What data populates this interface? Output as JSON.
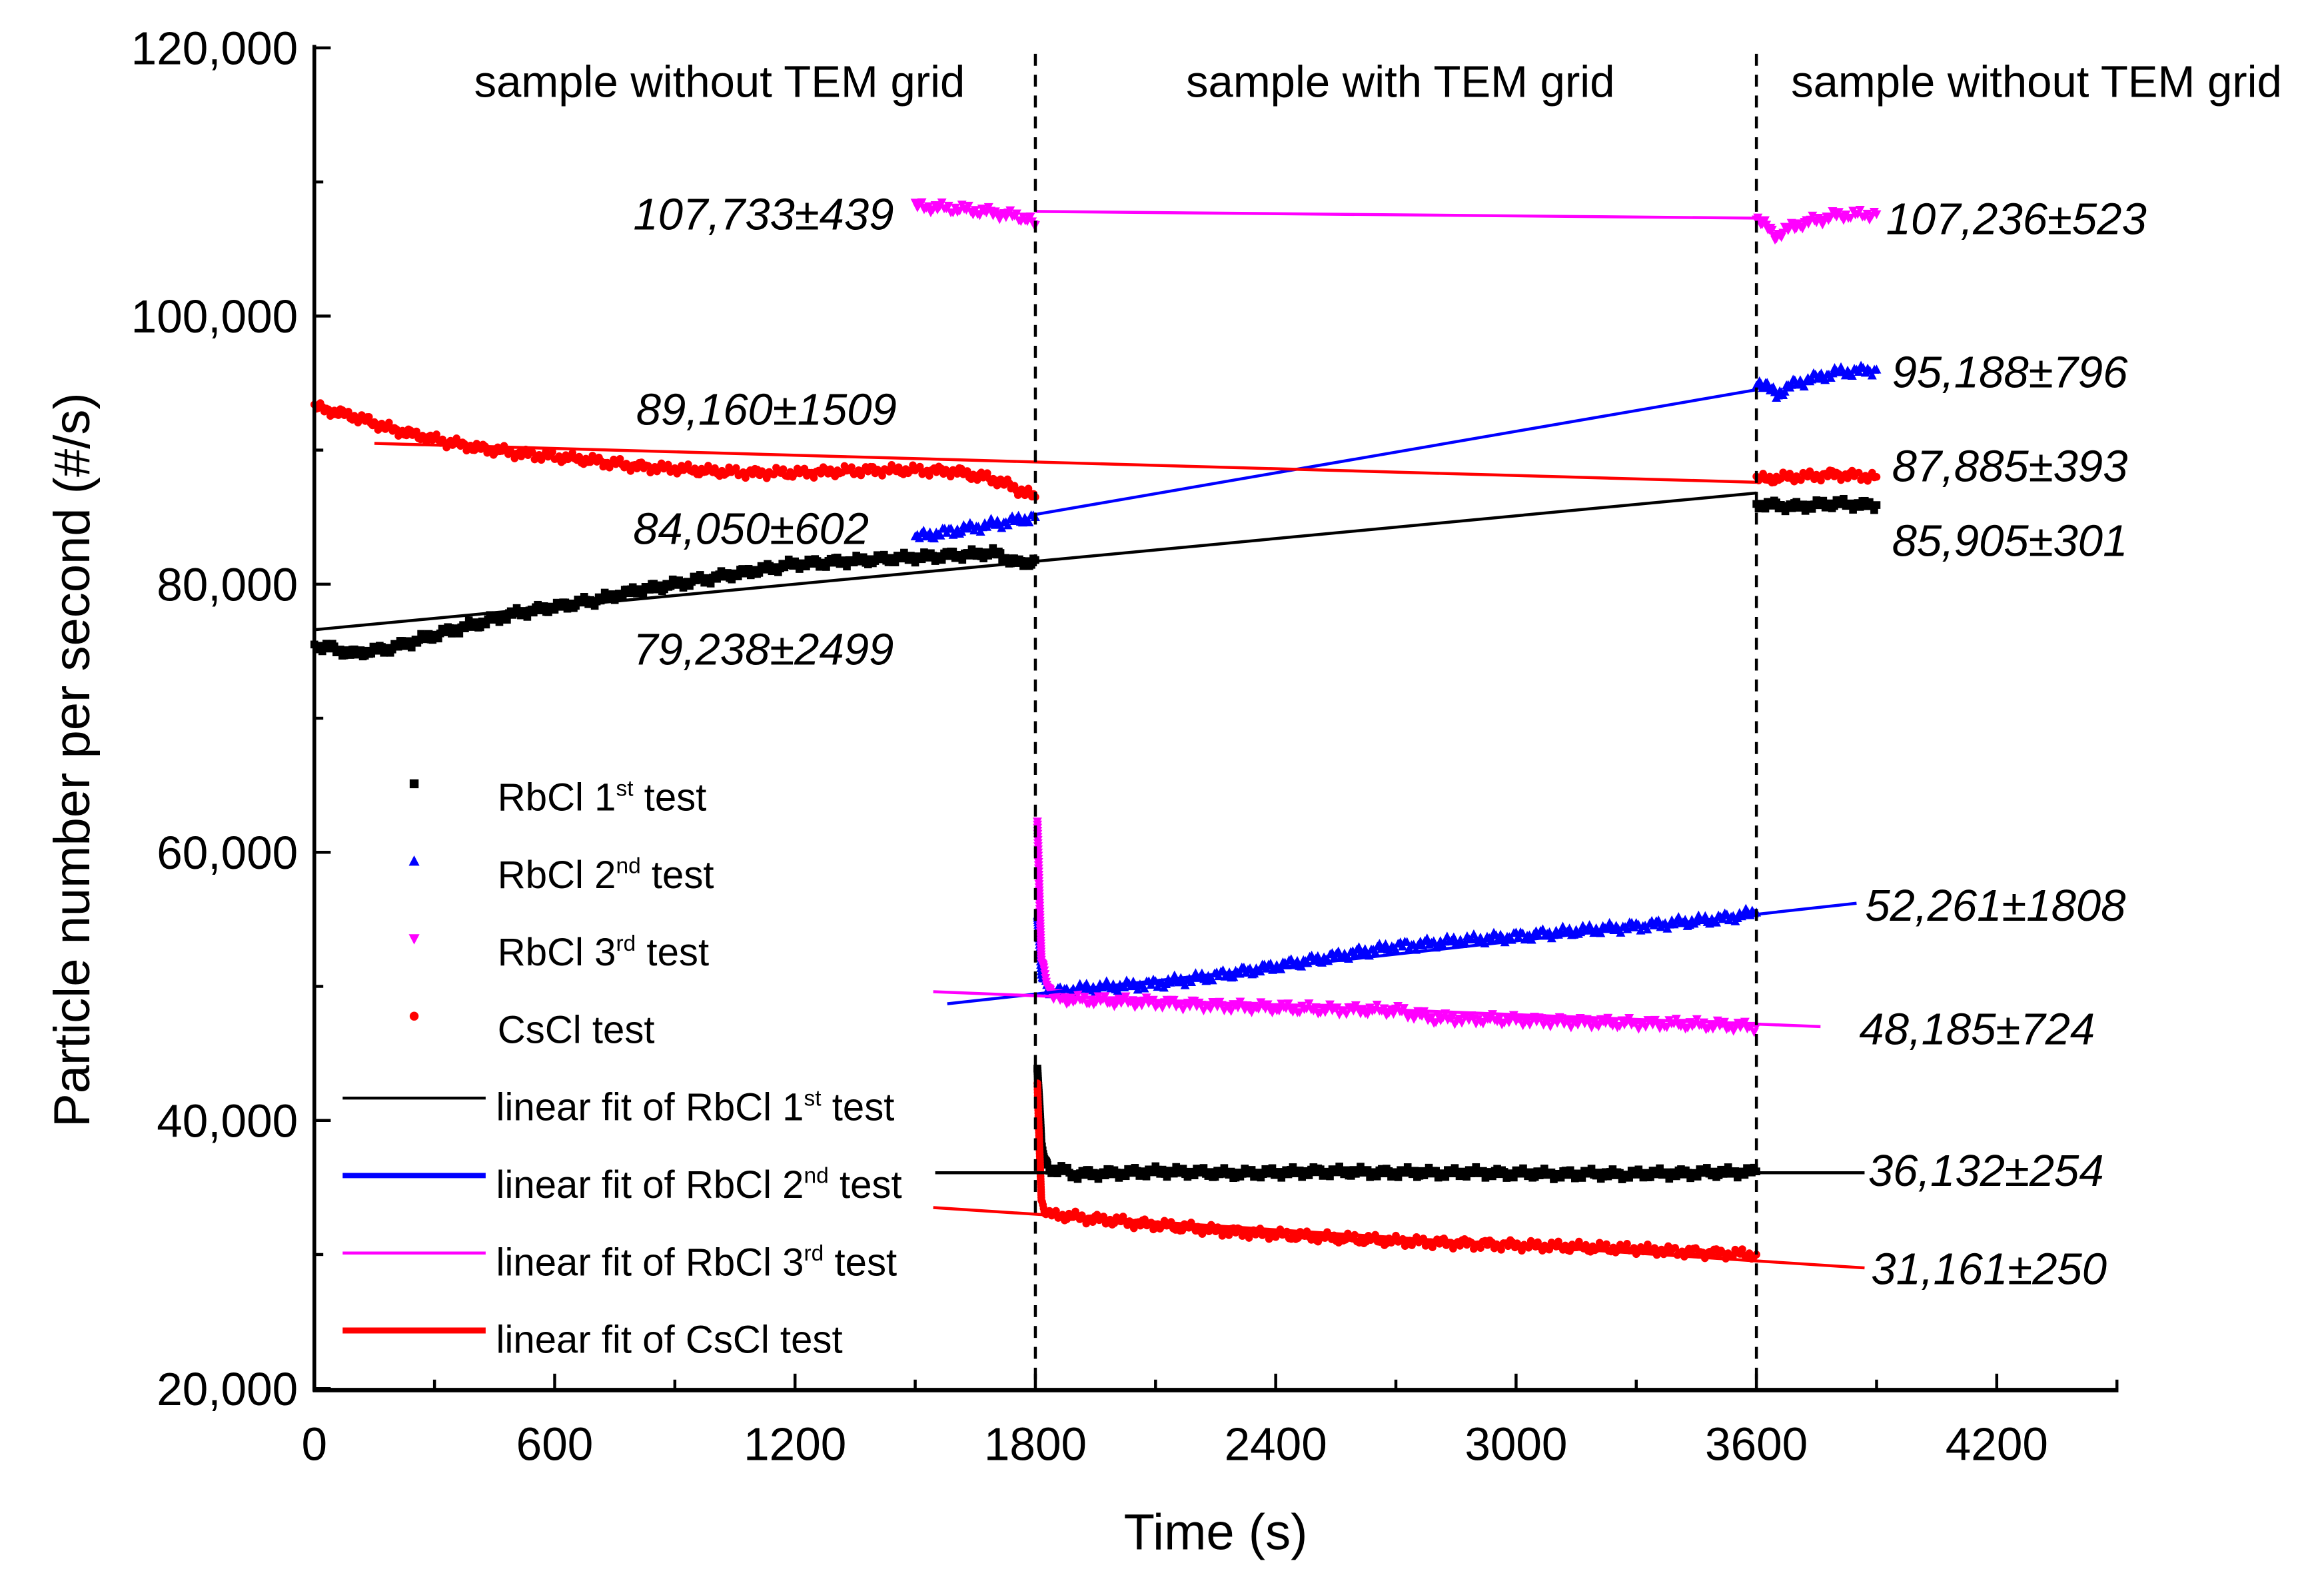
{
  "chart_data": {
    "type": "scatter",
    "title": "",
    "xlabel": "Time (s)",
    "ylabel": "Particle number per second (#/s)",
    "xlim": [
      0,
      4500
    ],
    "ylim": [
      20000,
      120000
    ],
    "xticks": [
      "0",
      "600",
      "1200",
      "1800",
      "2400",
      "3000",
      "3600",
      "4200"
    ],
    "xtick_values": [
      0,
      600,
      1200,
      1800,
      2400,
      3000,
      3600,
      4200
    ],
    "yticks": [
      "20,000",
      "40,000",
      "60,000",
      "80,000",
      "100,000",
      "120,000"
    ],
    "ytick_values": [
      20000,
      40000,
      60000,
      80000,
      100000,
      120000
    ],
    "grid": false,
    "legend_placement": "lower-left",
    "regions": [
      {
        "label": "sample without TEM grid",
        "range": [
          0,
          1800
        ]
      },
      {
        "label": "sample with TEM grid",
        "range": [
          1800,
          3600
        ]
      },
      {
        "label": "sample without TEM grid",
        "range": [
          3600,
          4500
        ]
      }
    ],
    "dividers": [
      1800,
      3600
    ],
    "series": [
      {
        "name": "RbCl 1st test",
        "legend": {
          "base": "RbCl 1",
          "sup": "st",
          "tail": " test"
        },
        "color": "#000000",
        "marker": "square",
        "segments": [
          [
            [
              0,
              75500
            ],
            [
              100,
              74800
            ],
            [
              200,
              75300
            ],
            [
              300,
              76200
            ],
            [
              400,
              77000
            ],
            [
              500,
              77800
            ],
            [
              600,
              78300
            ],
            [
              700,
              78800
            ],
            [
              800,
              79500
            ],
            [
              900,
              80000
            ],
            [
              1000,
              80500
            ],
            [
              1100,
              81000
            ],
            [
              1200,
              81500
            ],
            [
              1300,
              81700
            ],
            [
              1400,
              81800
            ],
            [
              1500,
              82000
            ],
            [
              1600,
              82200
            ],
            [
              1700,
              82300
            ],
            [
              1760,
              81500
            ],
            [
              1800,
              81800
            ]
          ],
          [
            [
              1805,
              44000
            ],
            [
              1815,
              38000
            ],
            [
              1830,
              36500
            ],
            [
              1900,
              36000
            ],
            [
              2100,
              36200
            ],
            [
              2300,
              36000
            ],
            [
              2500,
              36200
            ],
            [
              2700,
              36100
            ],
            [
              2900,
              36100
            ],
            [
              3100,
              36000
            ],
            [
              3300,
              36000
            ],
            [
              3500,
              36100
            ],
            [
              3600,
              36200
            ]
          ],
          [
            [
              3600,
              86000
            ],
            [
              3700,
              85800
            ],
            [
              3800,
              86000
            ],
            [
              3900,
              85900
            ]
          ]
        ]
      },
      {
        "name": "RbCl 2nd test",
        "legend": {
          "base": "RbCl 2",
          "sup": "nd",
          "tail": " test"
        },
        "color": "#0000ff",
        "marker": "triangle-up",
        "segments": [
          [
            [
              1500,
              83500
            ],
            [
              1600,
              84000
            ],
            [
              1700,
              84500
            ],
            [
              1800,
              85000
            ]
          ],
          [
            [
              1805,
              55000
            ],
            [
              1815,
              51000
            ],
            [
              1840,
              49500
            ],
            [
              1900,
              49800
            ],
            [
              2100,
              50200
            ],
            [
              2300,
              51000
            ],
            [
              2500,
              52000
            ],
            [
              2700,
              53000
            ],
            [
              2900,
              53500
            ],
            [
              3100,
              54000
            ],
            [
              3300,
              54500
            ],
            [
              3500,
              55000
            ],
            [
              3600,
              55500
            ]
          ],
          [
            [
              3600,
              95200
            ],
            [
              3650,
              94200
            ],
            [
              3700,
              95000
            ],
            [
              3800,
              95800
            ],
            [
              3900,
              96000
            ]
          ]
        ]
      },
      {
        "name": "RbCl 3rd test",
        "legend": {
          "base": "RbCl 3",
          "sup": "rd",
          "tail": " test"
        },
        "color": "#ff00ff",
        "marker": "triangle-down",
        "segments": [
          [
            [
              1500,
              108200
            ],
            [
              1600,
              108000
            ],
            [
              1700,
              107700
            ],
            [
              1780,
              107300
            ],
            [
              1800,
              106800
            ]
          ],
          [
            [
              1805,
              62000
            ],
            [
              1815,
              52000
            ],
            [
              1840,
              49200
            ],
            [
              1900,
              49000
            ],
            [
              2100,
              48800
            ],
            [
              2300,
              48500
            ],
            [
              2500,
              48300
            ],
            [
              2700,
              48200
            ],
            [
              2800,
              47600
            ],
            [
              3000,
              47500
            ],
            [
              3200,
              47300
            ],
            [
              3400,
              47200
            ],
            [
              3600,
              47000
            ]
          ],
          [
            [
              3600,
              107300
            ],
            [
              3650,
              106000
            ],
            [
              3700,
              106800
            ],
            [
              3800,
              107500
            ],
            [
              3900,
              107600
            ]
          ]
        ]
      },
      {
        "name": "CsCl test",
        "legend": {
          "base": "CsCl test",
          "sup": "",
          "tail": ""
        },
        "color": "#ff0000",
        "marker": "circle",
        "segments": [
          [
            [
              0,
              93200
            ],
            [
              100,
              92500
            ],
            [
              200,
              91500
            ],
            [
              300,
              90800
            ],
            [
              400,
              90200
            ],
            [
              500,
              89800
            ],
            [
              600,
              89500
            ],
            [
              700,
              89200
            ],
            [
              800,
              88800
            ],
            [
              900,
              88600
            ],
            [
              1000,
              88400
            ],
            [
              1100,
              88300
            ],
            [
              1200,
              88300
            ],
            [
              1300,
              88400
            ],
            [
              1400,
              88500
            ],
            [
              1500,
              88500
            ],
            [
              1600,
              88400
            ],
            [
              1700,
              87800
            ],
            [
              1800,
              86500
            ]
          ],
          [
            [
              1805,
              43000
            ],
            [
              1815,
              34000
            ],
            [
              1830,
              33000
            ],
            [
              1900,
              32800
            ],
            [
              2100,
              32200
            ],
            [
              2300,
              31700
            ],
            [
              2500,
              31300
            ],
            [
              2700,
              31000
            ],
            [
              2900,
              30800
            ],
            [
              3100,
              30600
            ],
            [
              3300,
              30400
            ],
            [
              3500,
              30100
            ],
            [
              3600,
              30000
            ]
          ],
          [
            [
              3600,
              87800
            ],
            [
              3700,
              88000
            ],
            [
              3800,
              88200
            ],
            [
              3900,
              88000
            ]
          ]
        ]
      }
    ],
    "fits": [
      {
        "name": "linear fit of RbCl 1st test",
        "legend": {
          "base": "linear fit of RbCl 1",
          "sup": "st",
          "tail": " test"
        },
        "color": "#000000",
        "lines": [
          [
            [
              0,
              76600
            ],
            [
              3600,
              86800
            ]
          ],
          [
            [
              1550,
              36100
            ],
            [
              3870,
              36100
            ]
          ]
        ]
      },
      {
        "name": "linear fit of RbCl 2nd test",
        "legend": {
          "base": "linear fit of RbCl 2",
          "sup": "nd",
          "tail": " test"
        },
        "color": "#0000ff",
        "lines": [
          [
            [
              1800,
              85200
            ],
            [
              3600,
              94500
            ]
          ],
          [
            [
              1580,
              48700
            ],
            [
              3850,
              56200
            ]
          ]
        ]
      },
      {
        "name": "linear fit of RbCl 3rd test",
        "legend": {
          "base": "linear fit of RbCl 3",
          "sup": "rd",
          "tail": " test"
        },
        "color": "#ff00ff",
        "lines": [
          [
            [
              1800,
              107800
            ],
            [
              3600,
              107300
            ]
          ],
          [
            [
              1545,
              49600
            ],
            [
              3760,
              47000
            ]
          ]
        ]
      },
      {
        "name": "linear fit of CsCl test",
        "legend": {
          "base": "linear fit of CsCl test",
          "sup": "",
          "tail": ""
        },
        "color": "#ff0000",
        "lines": [
          [
            [
              150,
              90500
            ],
            [
              3600,
              87600
            ]
          ],
          [
            [
              1545,
              33500
            ],
            [
              3870,
              29000
            ]
          ]
        ]
      }
    ],
    "annotations": [
      "107,733±439",
      "107,236±523",
      "89,160±1509",
      "95,188±796",
      "84,050±602",
      "87,885±393",
      "85,905±301",
      "79,238±2499",
      "52,261±1808",
      "48,185±724",
      "36,132±254",
      "31,161±250"
    ]
  }
}
